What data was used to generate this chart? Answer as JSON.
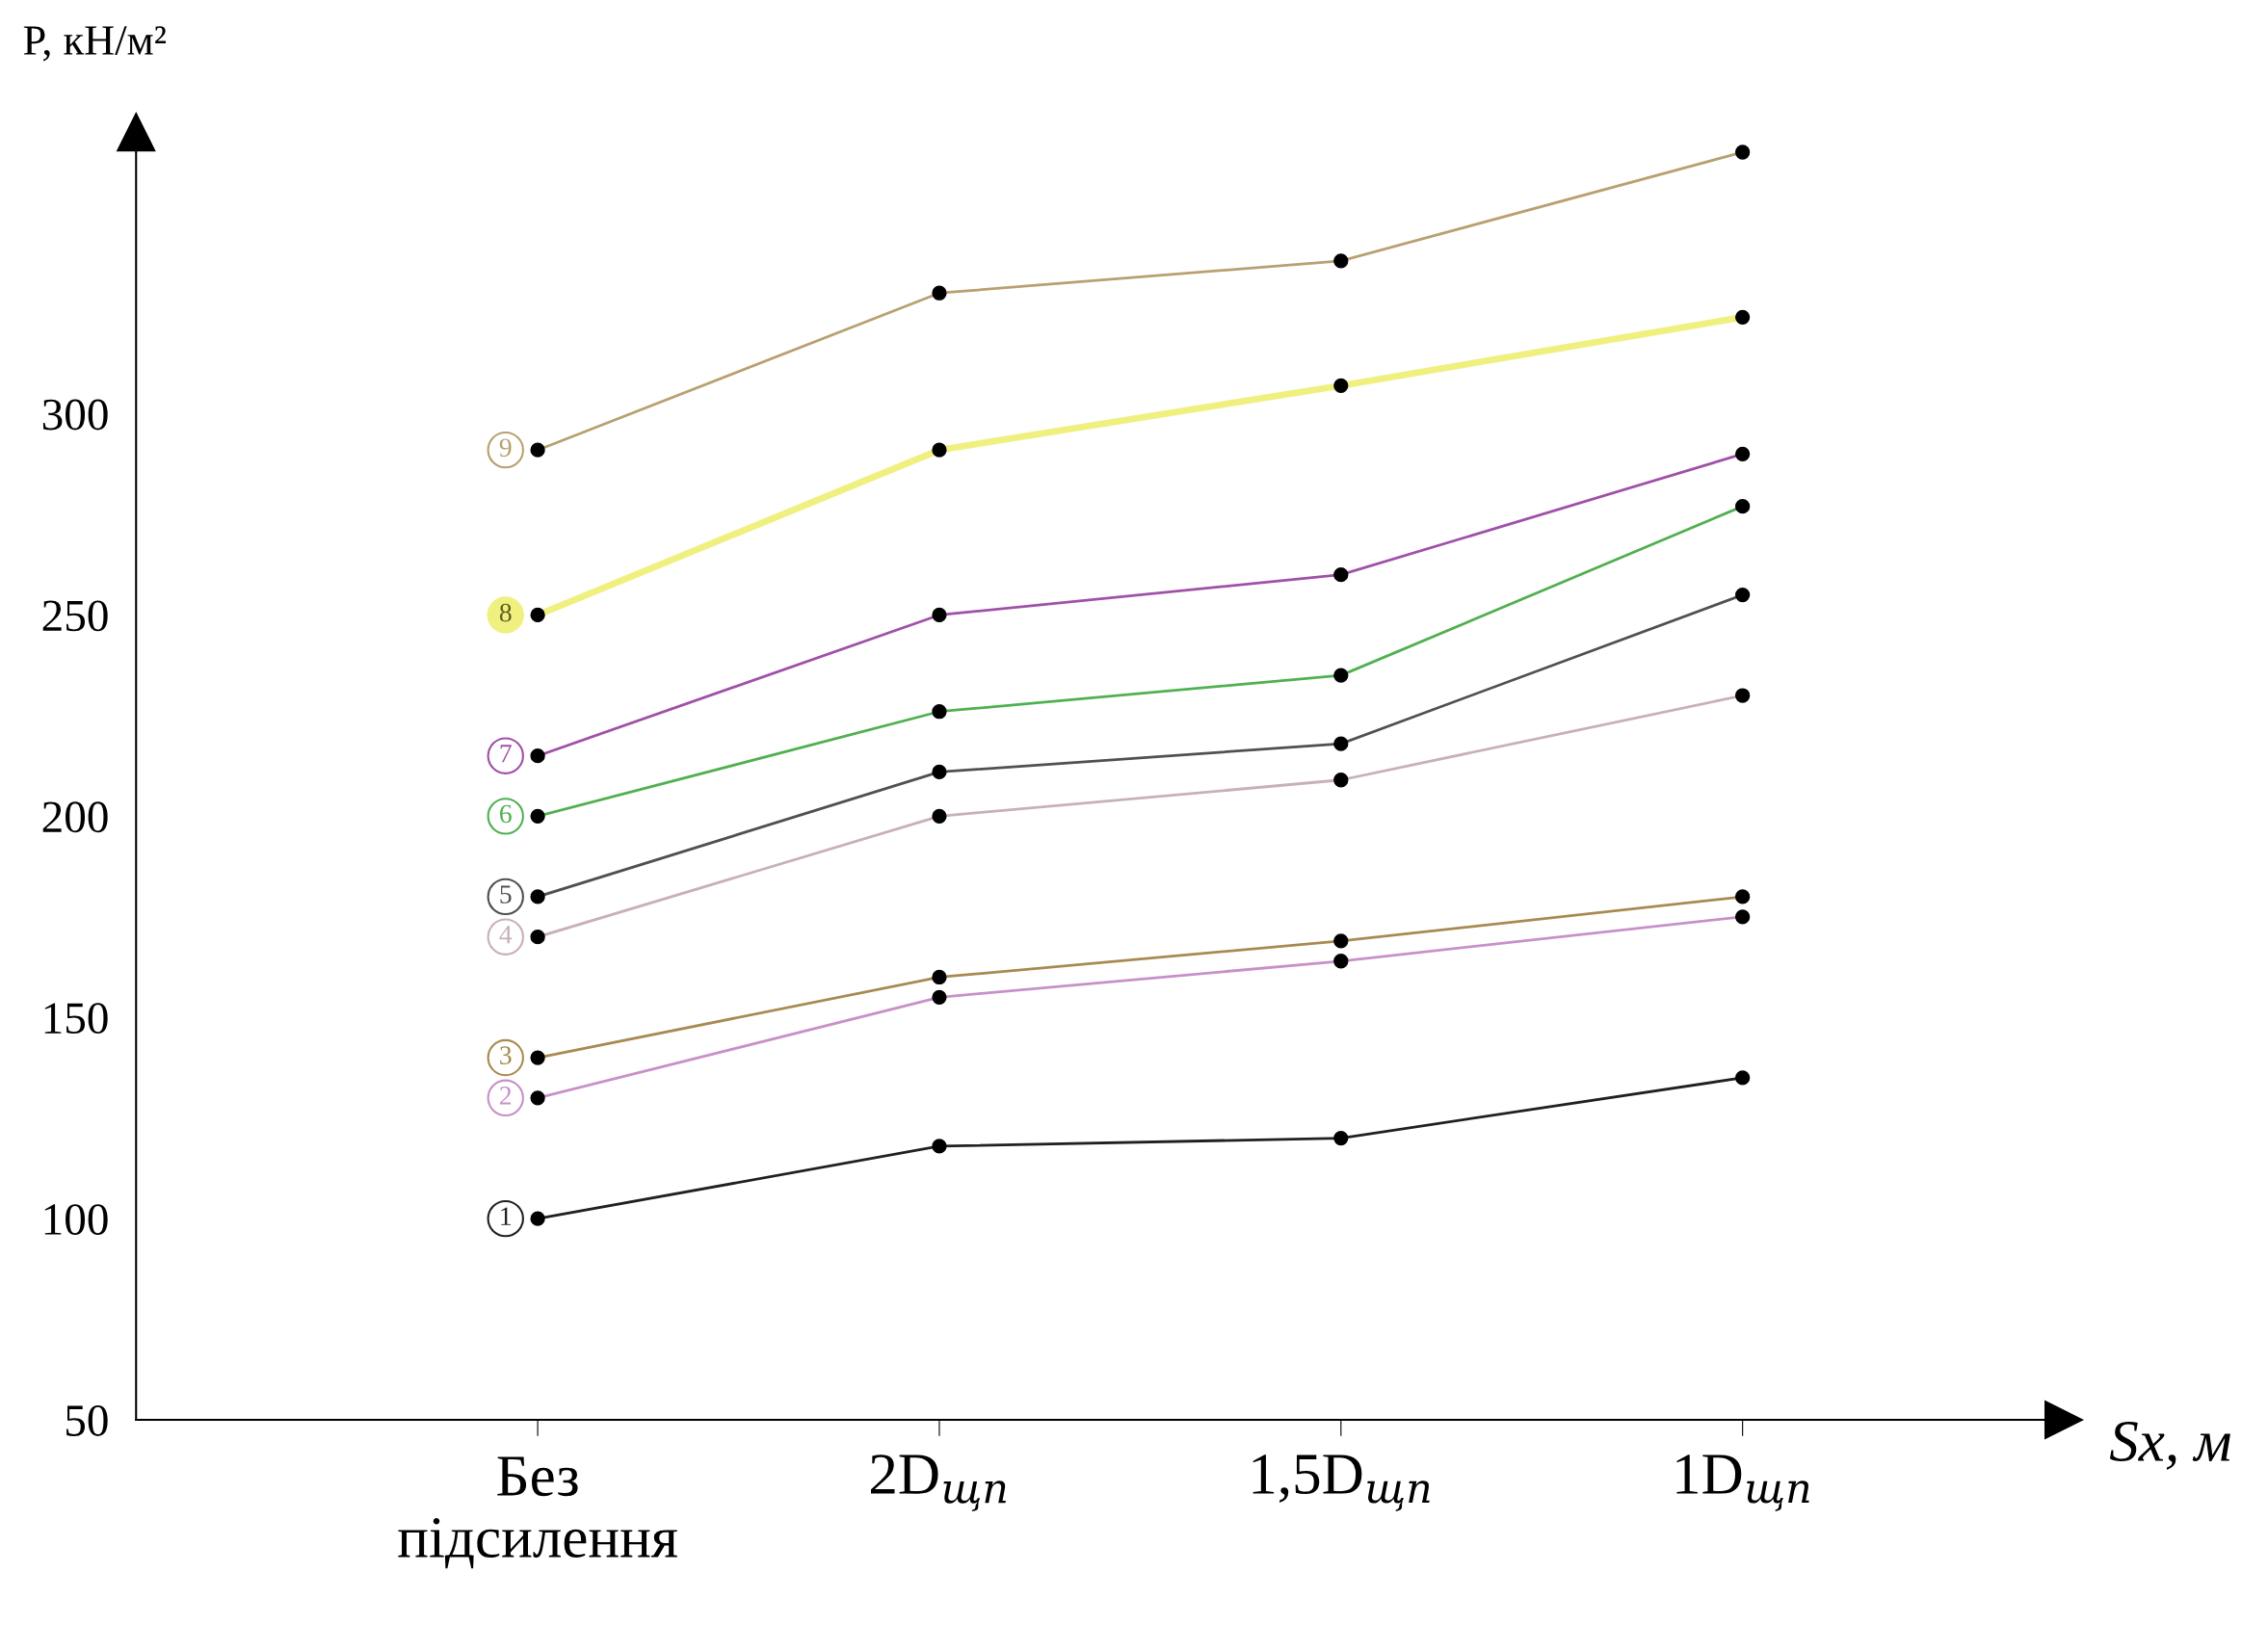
{
  "chart_data": {
    "type": "line",
    "xlabel": "Sx, м",
    "ylabel": "P, кН/м²",
    "categories": [
      "Без\nпідсилення",
      "2D$_{щп}$",
      "1,5D$_{щп}$",
      "1D$_{щп}$"
    ],
    "ylim": [
      50,
      370
    ],
    "yticks": [
      50,
      100,
      150,
      200,
      250,
      300
    ],
    "grid": false,
    "legend": "left",
    "marker": "circle",
    "line_style": "solid",
    "series": [
      {
        "name": "1",
        "color": "#202020",
        "values": [
          100,
          118,
          120,
          135
        ]
      },
      {
        "name": "2",
        "color": "#c890c8",
        "values": [
          130,
          155,
          164,
          175
        ]
      },
      {
        "name": "3",
        "color": "#a88a50",
        "values": [
          140,
          160,
          169,
          180
        ]
      },
      {
        "name": "4",
        "color": "#c8b0b8",
        "values": [
          170,
          200,
          209,
          230
        ]
      },
      {
        "name": "5",
        "color": "#505050",
        "values": [
          180,
          211,
          218,
          255
        ]
      },
      {
        "name": "6",
        "color": "#50b050",
        "values": [
          200,
          226,
          235,
          277
        ]
      },
      {
        "name": "7",
        "color": "#a050a8",
        "values": [
          215,
          250,
          260,
          290
        ]
      },
      {
        "name": "8",
        "color": "#f0f080",
        "values": [
          250,
          291,
          307,
          324
        ]
      },
      {
        "name": "9",
        "color": "#b8a070",
        "values": [
          291,
          330,
          338,
          365
        ]
      }
    ]
  }
}
